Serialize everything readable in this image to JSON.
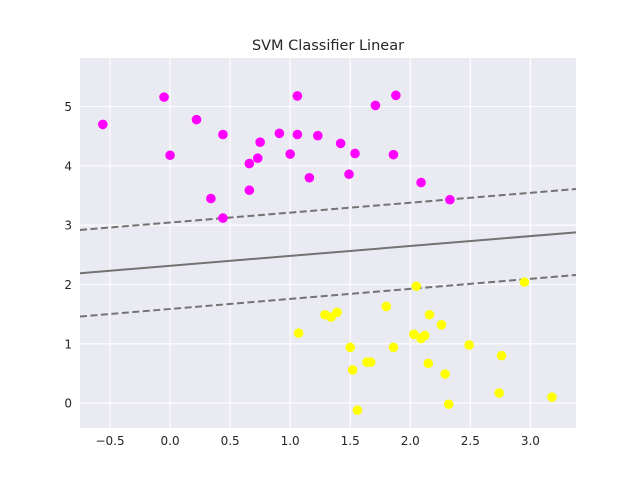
{
  "chart_data": {
    "type": "scatter",
    "title": "SVM Classifier Linear",
    "xlabel": "",
    "ylabel": "",
    "xlim": [
      -0.75,
      3.38
    ],
    "ylim": [
      -0.42,
      5.82
    ],
    "xticks": [
      -0.5,
      0.0,
      0.5,
      1.0,
      1.5,
      2.0,
      2.5,
      3.0
    ],
    "xtick_labels": [
      "−0.5",
      "0.0",
      "0.5",
      "1.0",
      "1.5",
      "2.0",
      "2.5",
      "3.0"
    ],
    "yticks": [
      0,
      1,
      2,
      3,
      4,
      5
    ],
    "ytick_labels": [
      "0",
      "1",
      "2",
      "3",
      "4",
      "5"
    ],
    "grid": true,
    "background_color": "#eaeaf2",
    "series": [
      {
        "color": "#ff00ff",
        "points": [
          [
            -0.56,
            4.7
          ],
          [
            -0.05,
            5.16
          ],
          [
            0.0,
            4.18
          ],
          [
            0.22,
            4.78
          ],
          [
            0.34,
            3.45
          ],
          [
            0.44,
            4.53
          ],
          [
            0.44,
            3.12
          ],
          [
            0.66,
            4.04
          ],
          [
            0.66,
            3.59
          ],
          [
            0.73,
            4.13
          ],
          [
            0.75,
            4.4
          ],
          [
            0.91,
            4.55
          ],
          [
            1.0,
            4.2
          ],
          [
            1.06,
            5.18
          ],
          [
            1.06,
            4.53
          ],
          [
            1.16,
            3.8
          ],
          [
            1.23,
            4.51
          ],
          [
            1.42,
            4.38
          ],
          [
            1.49,
            3.86
          ],
          [
            1.54,
            4.21
          ],
          [
            1.71,
            5.02
          ],
          [
            1.86,
            4.19
          ],
          [
            1.88,
            5.19
          ],
          [
            2.09,
            3.72
          ],
          [
            2.33,
            3.43
          ]
        ]
      },
      {
        "color": "#ffff00",
        "points": [
          [
            1.07,
            1.18
          ],
          [
            1.29,
            1.49
          ],
          [
            1.34,
            1.45
          ],
          [
            1.39,
            1.53
          ],
          [
            1.5,
            0.94
          ],
          [
            1.52,
            0.56
          ],
          [
            1.56,
            -0.12
          ],
          [
            1.64,
            0.69
          ],
          [
            1.67,
            0.69
          ],
          [
            1.8,
            1.63
          ],
          [
            1.86,
            0.94
          ],
          [
            2.03,
            1.16
          ],
          [
            2.05,
            1.97
          ],
          [
            2.09,
            1.09
          ],
          [
            2.12,
            1.14
          ],
          [
            2.15,
            0.67
          ],
          [
            2.16,
            1.49
          ],
          [
            2.26,
            1.32
          ],
          [
            2.29,
            0.49
          ],
          [
            2.32,
            -0.02
          ],
          [
            2.49,
            0.98
          ],
          [
            2.74,
            0.17
          ],
          [
            2.76,
            0.8
          ],
          [
            2.95,
            2.04
          ],
          [
            3.18,
            0.1
          ]
        ]
      }
    ],
    "lines": [
      {
        "style": "solid",
        "color": "#737373",
        "x": [
          -0.75,
          3.38
        ],
        "y": [
          2.19,
          2.88
        ]
      },
      {
        "style": "dashed",
        "color": "#737373",
        "x": [
          -0.75,
          3.38
        ],
        "y": [
          1.46,
          2.16
        ]
      },
      {
        "style": "dashed",
        "color": "#737373",
        "x": [
          -0.75,
          3.38
        ],
        "y": [
          2.92,
          3.61
        ]
      }
    ]
  }
}
